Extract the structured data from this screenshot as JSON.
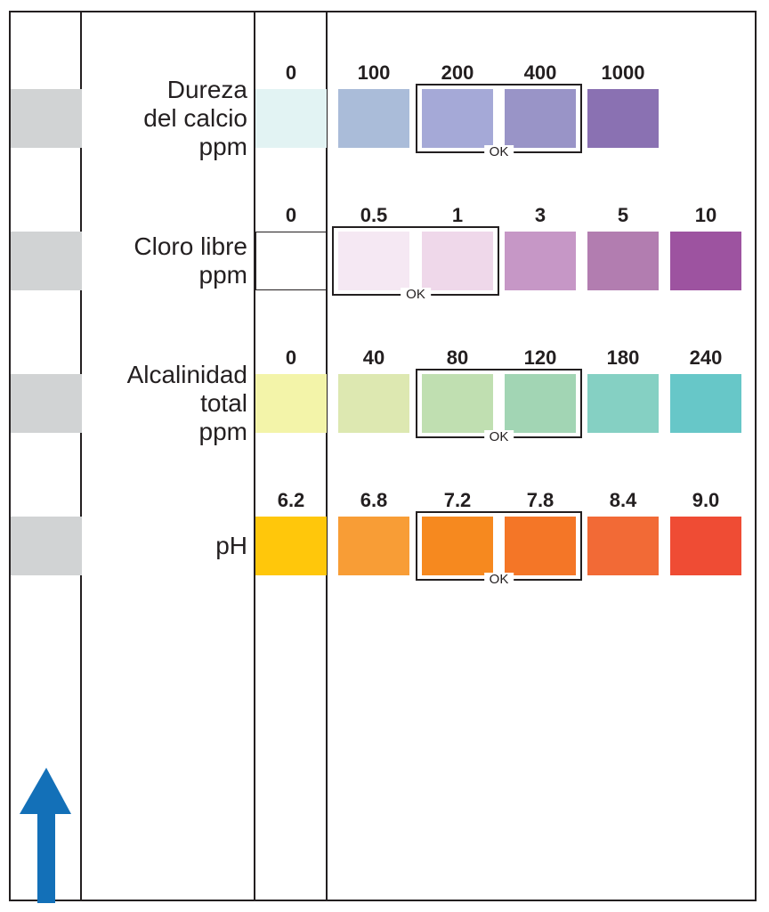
{
  "rows": [
    {
      "label": [
        "Dureza",
        "del calcio",
        "ppm"
      ],
      "values": [
        "0",
        "100",
        "200",
        "400",
        "1000"
      ],
      "colors": [
        "#e2f3f3",
        "#aabcd9",
        "#a5a9d7",
        "#9994c7",
        "#8a71b2"
      ],
      "ok": [
        2,
        3
      ],
      "ok_label": "OK"
    },
    {
      "label": [
        "Cloro libre",
        "ppm"
      ],
      "values": [
        "0",
        "0.5",
        "1",
        "3",
        "5",
        "10"
      ],
      "colors": [
        "#ffffff",
        "#f5e8f3",
        "#efd8ea",
        "#c697c6",
        "#b27db0",
        "#9d53a0"
      ],
      "ok": [
        1,
        2
      ],
      "ok_label": "OK"
    },
    {
      "label": [
        "Alcalinidad",
        "total",
        "ppm"
      ],
      "values": [
        "0",
        "40",
        "80",
        "120",
        "180",
        "240"
      ],
      "colors": [
        "#f3f4a9",
        "#dde8b1",
        "#c0dfb1",
        "#a2d5b4",
        "#85d0c3",
        "#67c7c8"
      ],
      "ok": [
        2,
        3
      ],
      "ok_label": "OK"
    },
    {
      "label": [
        "pH"
      ],
      "values": [
        "6.2",
        "6.8",
        "7.2",
        "7.8",
        "8.4",
        "9.0"
      ],
      "colors": [
        "#ffc70b",
        "#f89d36",
        "#f6891f",
        "#f47627",
        "#f26a36",
        "#ef4c34"
      ],
      "ok": [
        2,
        3
      ],
      "ok_label": "OK"
    }
  ],
  "strip": {
    "pad_color": "#d1d3d4",
    "arrow_color": "#1370b8",
    "arrow_icon": "arrow-up-icon"
  }
}
